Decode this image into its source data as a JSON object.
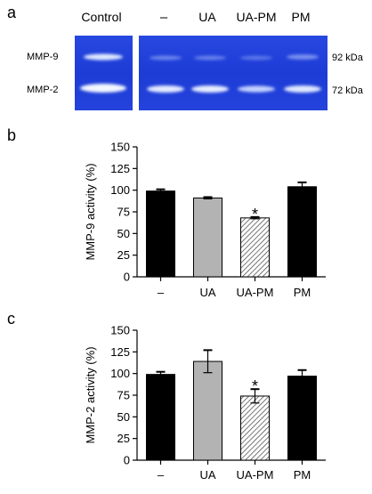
{
  "panels": {
    "a": {
      "label": "a"
    },
    "b": {
      "label": "b"
    },
    "c": {
      "label": "c"
    }
  },
  "gel": {
    "columns": [
      "Control",
      "–",
      "UA",
      "UA-PM",
      "PM"
    ],
    "band_labels": [
      "MMP-9",
      "MMP-2"
    ],
    "kda_labels": [
      "92 kDa",
      "72 kDa"
    ],
    "colors": {
      "background": "#1f3fd8",
      "band": "#e8f0ff"
    }
  },
  "colors": {
    "black_bar": "#000000",
    "gray_bar": "#b3b3b3",
    "hatch": "#555555"
  },
  "chart_data": [
    {
      "type": "bar",
      "panel": "b",
      "ylabel": "MMP-9 activity (%)",
      "categories": [
        "–",
        "UA",
        "UA-PM",
        "PM"
      ],
      "values": [
        99,
        91,
        68,
        104
      ],
      "errors": [
        2,
        1,
        1,
        5
      ],
      "bar_styles": [
        "black",
        "gray",
        "hatched",
        "black"
      ],
      "significance": [
        "",
        "",
        "*",
        ""
      ],
      "ylim": [
        0,
        150
      ],
      "yticks": [
        0,
        25,
        50,
        75,
        100,
        125,
        150
      ],
      "grid": false,
      "legend": "none"
    },
    {
      "type": "bar",
      "panel": "c",
      "ylabel": "MMP-2 activity (%)",
      "categories": [
        "–",
        "UA",
        "UA-PM",
        "PM"
      ],
      "values": [
        99,
        114,
        74,
        97
      ],
      "errors": [
        3,
        13,
        8,
        7
      ],
      "bar_styles": [
        "black",
        "gray",
        "hatched",
        "black"
      ],
      "significance": [
        "",
        "",
        "*",
        ""
      ],
      "ylim": [
        0,
        150
      ],
      "yticks": [
        0,
        25,
        50,
        75,
        100,
        125,
        150
      ],
      "grid": false,
      "legend": "none"
    }
  ]
}
